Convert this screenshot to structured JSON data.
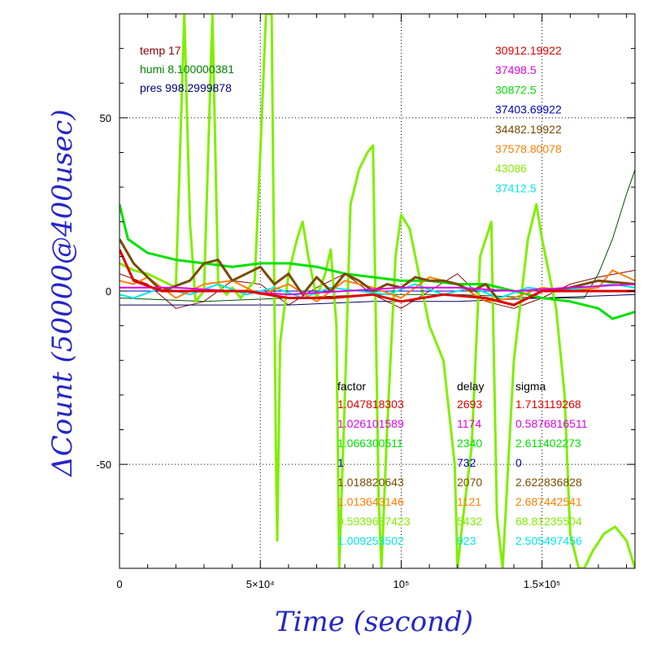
{
  "chart_data": {
    "type": "line",
    "xlabel": "Time (second)",
    "ylabel": "ΔCount (50000@400usec)",
    "xlim": [
      0,
      183000
    ],
    "ylim": [
      -80,
      80
    ],
    "grid": true,
    "x_ticks": [
      {
        "value": 0,
        "label": "0"
      },
      {
        "value": 50000,
        "label": "5×10⁴"
      },
      {
        "value": 100000,
        "label": "10⁵"
      },
      {
        "value": 150000,
        "label": "1.5×10⁵"
      }
    ],
    "y_ticks": [
      {
        "value": 50,
        "label": "50"
      },
      {
        "value": 0,
        "label": "0"
      },
      {
        "value": -50,
        "label": "-50"
      }
    ],
    "env": {
      "temp": {
        "text": "temp 17",
        "color": "#8b0000"
      },
      "humi": {
        "text": "humi 8.100000381",
        "color": "#008000"
      },
      "pres": {
        "text": "pres 998.2999878",
        "color": "#00007f"
      }
    },
    "table_headers": {
      "factor": "factor",
      "delay": "delay",
      "sigma": "sigma"
    },
    "series": [
      {
        "name": "30912.19922",
        "color": "#e00000",
        "factor": "1.047818303",
        "delay": "2693",
        "sigma": "1.713119268",
        "width": 3,
        "x": [
          0,
          5000,
          15000,
          30000,
          45000,
          60000,
          75000,
          90000,
          100000,
          115000,
          130000,
          140000,
          150000,
          160000,
          175000,
          183000
        ],
        "y": [
          12,
          3,
          0,
          0,
          0,
          -2,
          -2,
          -1,
          -3,
          -1,
          -2,
          -4,
          0,
          0,
          0,
          0
        ]
      },
      {
        "name": "37498.5",
        "color": "#e000e0",
        "factor": "1.026101589",
        "delay": "1174",
        "sigma": "0.5876816511",
        "width": 2,
        "x": [
          0,
          20000,
          40000,
          60000,
          80000,
          100000,
          120000,
          140000,
          160000,
          183000
        ],
        "y": [
          1,
          1,
          0,
          -1,
          0,
          1,
          1,
          0,
          1,
          2
        ]
      },
      {
        "name": "30872.5",
        "color": "#00e000",
        "factor": "1.066300511",
        "delay": "2340",
        "sigma": "2.611402273",
        "width": 3,
        "x": [
          0,
          3000,
          10000,
          20000,
          30000,
          40000,
          50000,
          60000,
          70000,
          80000,
          90000,
          100000,
          110000,
          120000,
          130000,
          140000,
          150000,
          160000,
          170000,
          175000,
          183000
        ],
        "y": [
          25,
          15,
          11,
          9,
          8,
          7,
          8,
          8,
          7,
          5,
          4,
          3,
          3,
          2,
          2,
          0,
          -2,
          -3,
          -5,
          -8,
          -6
        ]
      },
      {
        "name": "37403.69922",
        "color": "#0000c0",
        "factor": "1",
        "delay": "732",
        "sigma": "0",
        "width": 1,
        "x": [
          0,
          183000
        ],
        "y": [
          0,
          0
        ]
      },
      {
        "name": "34482.19922",
        "color": "#7a4a00",
        "factor": "1.018820643",
        "delay": "2070",
        "sigma": "2.622836828",
        "width": 3,
        "x": [
          0,
          5000,
          15000,
          25000,
          30000,
          35000,
          40000,
          45000,
          50000,
          55000,
          60000,
          65000,
          70000,
          75000,
          80000,
          85000,
          90000,
          95000,
          100000,
          105000,
          110000,
          115000,
          120000,
          125000,
          130000,
          135000,
          140000,
          150000,
          160000,
          170000,
          183000
        ],
        "y": [
          15,
          8,
          0,
          3,
          8,
          9,
          3,
          5,
          7,
          2,
          5,
          -1,
          4,
          0,
          5,
          3,
          0,
          2,
          1,
          4,
          3,
          3,
          2,
          0,
          2,
          -3,
          -4,
          0,
          1,
          3,
          2
        ]
      },
      {
        "name": "37578.80078",
        "color": "#ff7f00",
        "factor": "1.013643146",
        "delay": "1121",
        "sigma": "2.687442541",
        "width": 2,
        "x": [
          0,
          5000,
          10000,
          20000,
          30000,
          40000,
          50000,
          60000,
          70000,
          80000,
          90000,
          100000,
          110000,
          120000,
          130000,
          140000,
          150000,
          160000,
          170000,
          175000,
          183000
        ],
        "y": [
          3,
          2,
          4,
          -2,
          2,
          3,
          -1,
          2,
          -3,
          3,
          1,
          -2,
          4,
          2,
          -3,
          -2,
          1,
          0,
          1,
          6,
          3
        ]
      },
      {
        "name": "43086",
        "color": "#80ee00",
        "factor": "0.5939637423",
        "delay": "5432",
        "sigma": "68.81235504",
        "width": 3,
        "x": [
          0,
          5000,
          10000,
          15000,
          20000,
          23000,
          25000,
          27000,
          30000,
          33000,
          35000,
          38000,
          40000,
          43000,
          45000,
          48000,
          50000,
          52000,
          54000,
          55500,
          56000,
          57000,
          60000,
          63000,
          65000,
          67000,
          70000,
          73000,
          75000,
          77000,
          78000,
          80000,
          82000,
          85000,
          88000,
          90000,
          92000,
          93000,
          95000,
          98000,
          100000,
          103000,
          105000,
          110000,
          115000,
          119000,
          120000,
          122000,
          125000,
          128000,
          132000,
          134000,
          136000,
          140000,
          145000,
          148000,
          150000,
          155000,
          158000,
          160000,
          163000,
          165000,
          168000,
          172000,
          176000,
          180000,
          183000
        ],
        "y": [
          8,
          6,
          5,
          3,
          1,
          80,
          20,
          -3,
          0,
          80,
          2,
          -1,
          1,
          -2,
          0,
          3,
          40,
          80,
          80,
          -45,
          -72,
          -15,
          5,
          15,
          20,
          10,
          -2,
          5,
          12,
          -10,
          -80,
          -30,
          25,
          35,
          40,
          42,
          -60,
          -80,
          -40,
          10,
          22,
          18,
          10,
          -10,
          -20,
          -50,
          -80,
          -65,
          -45,
          10,
          20,
          -65,
          -80,
          -20,
          15,
          25,
          15,
          -5,
          -30,
          -70,
          -80,
          -80,
          -75,
          -70,
          -68,
          -72,
          -80
        ]
      },
      {
        "name": "37412.5",
        "color": "#00e8e8",
        "factor": "1.009253502",
        "delay": "923",
        "sigma": "2.505497456",
        "width": 2,
        "x": [
          0,
          5000,
          15000,
          25000,
          35000,
          45000,
          55000,
          65000,
          75000,
          85000,
          95000,
          105000,
          115000,
          125000,
          135000,
          145000,
          155000,
          165000,
          175000,
          183000
        ],
        "y": [
          -1,
          -2,
          1,
          -1,
          2,
          -1,
          1,
          -2,
          1,
          0,
          -1,
          2,
          -1,
          1,
          -2,
          1,
          0,
          1,
          2,
          1
        ]
      },
      {
        "name": "temp",
        "color": "#8b0000",
        "legend": false,
        "width": 1,
        "x": [
          0,
          10000,
          20000,
          30000,
          40000,
          50000,
          60000,
          70000,
          80000,
          90000,
          100000,
          110000,
          120000,
          130000,
          140000,
          150000,
          160000,
          170000,
          183000
        ],
        "y": [
          5,
          2,
          -5,
          -3,
          3,
          2,
          -4,
          1,
          5,
          -1,
          -5,
          0,
          5,
          -3,
          -5,
          -2,
          2,
          4,
          6
        ]
      },
      {
        "name": "humi",
        "color": "#005000",
        "legend": false,
        "width": 1,
        "x": [
          0,
          30000,
          60000,
          90000,
          120000,
          150000,
          165000,
          170000,
          175000,
          180000,
          183000
        ],
        "y": [
          -2,
          -3,
          -2,
          -1,
          -1,
          -2,
          -2,
          5,
          15,
          28,
          35
        ]
      },
      {
        "name": "pres",
        "color": "#00005a",
        "legend": false,
        "width": 1,
        "x": [
          0,
          10000,
          30000,
          60000,
          90000,
          120000,
          150000,
          183000
        ],
        "y": [
          -4,
          -4,
          -4,
          -4,
          -3,
          -3,
          -2,
          -1
        ]
      }
    ]
  }
}
